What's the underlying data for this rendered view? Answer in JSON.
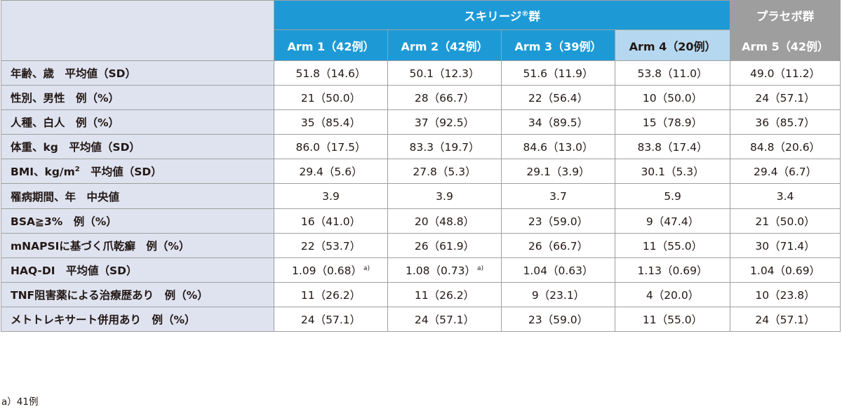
{
  "header": {
    "group_skyrizi": "スキリージ",
    "group_skyrizi_mark": "®",
    "group_skyrizi_suffix": "群",
    "group_placebo": "プラセボ群",
    "arms": [
      "Arm 1（42例）",
      "Arm 2（42例）",
      "Arm 3（39例）",
      "Arm 4（20例）",
      "Arm 5（42例）"
    ]
  },
  "rows": [
    {
      "label": "年齢、歳　平均値（SD）",
      "values": [
        "51.8（14.6）",
        "50.1（12.3）",
        "51.6（11.9）",
        "53.8（11.0）",
        "49.0（11.2）"
      ]
    },
    {
      "label": "性別、男性　例（%）",
      "values": [
        "21（50.0）",
        "28（66.7）",
        "22（56.4）",
        "10（50.0）",
        "24（57.1）"
      ]
    },
    {
      "label": "人種、白人　例（%）",
      "values": [
        "35（85.4）",
        "37（92.5）",
        "34（89.5）",
        "15（78.9）",
        "36（85.7）"
      ]
    },
    {
      "label": "体重、kg　平均値（SD）",
      "values": [
        "86.0（17.5）",
        "83.3（19.7）",
        "84.6（13.0）",
        "83.8（17.4）",
        "84.8（20.6）"
      ]
    },
    {
      "label": "BMI、kg/m",
      "label_sup": "2",
      "label_suffix": "　平均値（SD）",
      "values": [
        "29.4（5.6）",
        "27.8（5.3）",
        "29.1（3.9）",
        "30.1（5.3）",
        "29.4（6.7）"
      ]
    },
    {
      "label": "罹病期間、年　中央値",
      "values": [
        "3.9",
        "3.9",
        "3.7",
        "5.9",
        "3.4"
      ]
    },
    {
      "label": "BSA≧3%　例（%）",
      "values": [
        "16（41.0）",
        "20（48.8）",
        "23（59.0）",
        "9（47.4）",
        "21（50.0）"
      ]
    },
    {
      "label": "mNAPSIに基づく爪乾癬　例（%）",
      "values": [
        "22（53.7）",
        "26（61.9）",
        "26（66.7）",
        "11（55.0）",
        "30（71.4）"
      ]
    },
    {
      "label": "HAQ-DI　平均値（SD）",
      "values": [
        "1.09（0.68）",
        "1.08（0.73）",
        "1.04（0.63）",
        "1.13（0.69）",
        "1.04（0.69）"
      ],
      "value_notes": [
        "a)",
        "a)",
        "",
        "",
        ""
      ]
    },
    {
      "label": "TNF阻害薬による治療歴あり　例（%）",
      "values": [
        "11（26.2）",
        "11（26.2）",
        "9（23.1）",
        "4（20.0）",
        "10（23.8）"
      ]
    },
    {
      "label": "メトトレキサート併用あり　例（%）",
      "values": [
        "24（57.1）",
        "24（57.1）",
        "23（59.0）",
        "11（55.0）",
        "24（57.1）"
      ]
    }
  ],
  "footnote": "a）41例",
  "colors": {
    "header_blue": "#1d9ad6",
    "arm4_light_blue": "#b5d8f0",
    "placebo_gray": "#9e9e9f",
    "label_bg": "#dfe3f0"
  }
}
